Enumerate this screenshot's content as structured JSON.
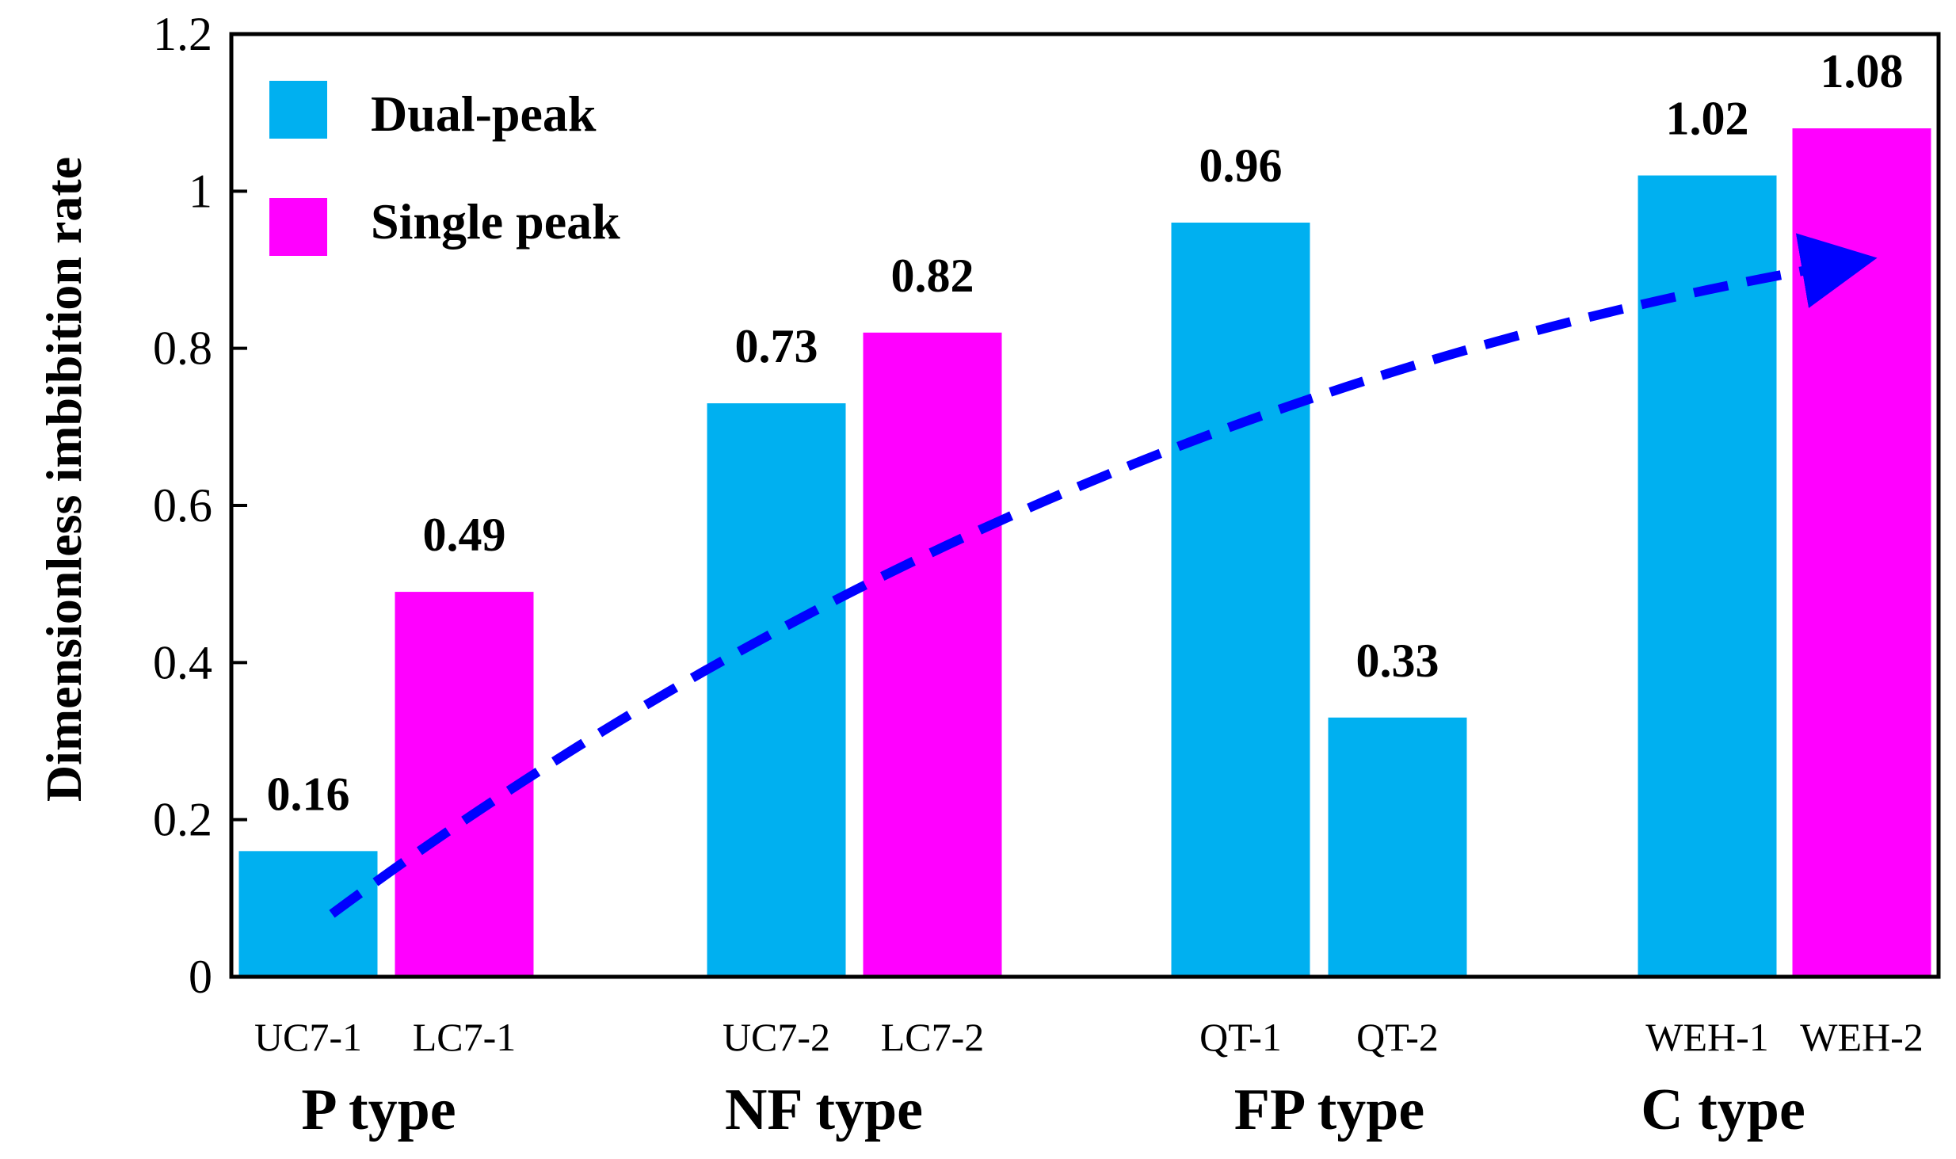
{
  "colors": {
    "dual_peak": "#00B0F0",
    "single_peak": "#FF00FF",
    "trend": "#0000FF",
    "axis": "#000000"
  },
  "chart_data": {
    "type": "bar",
    "ylabel": "Dimensionless imbibition rate",
    "ylim": [
      0,
      1.2
    ],
    "yticks": [
      0,
      0.2,
      0.4,
      0.6,
      0.8,
      1,
      1.2
    ],
    "ytick_labels": [
      "0",
      "0.2",
      "0.4",
      "0.6",
      "0.8",
      "1",
      "1.2"
    ],
    "legend": {
      "placement": "top-left",
      "entries": [
        {
          "label": "Dual-peak",
          "series": "dual_peak"
        },
        {
          "label": "Single peak",
          "series": "single_peak"
        }
      ]
    },
    "groups": [
      {
        "label": "P type",
        "bars": [
          {
            "sample": "UC7-1",
            "value": 0.16,
            "value_label": "0.16",
            "series": "dual_peak"
          },
          {
            "sample": "LC7-1",
            "value": 0.49,
            "value_label": "0.49",
            "series": "single_peak"
          }
        ]
      },
      {
        "label": "NF type",
        "bars": [
          {
            "sample": "UC7-2",
            "value": 0.73,
            "value_label": "0.73",
            "series": "dual_peak"
          },
          {
            "sample": "LC7-2",
            "value": 0.82,
            "value_label": "0.82",
            "series": "single_peak"
          }
        ]
      },
      {
        "label": "FP type",
        "bars": [
          {
            "sample": "QT-1",
            "value": 0.96,
            "value_label": "0.96",
            "series": "dual_peak"
          },
          {
            "sample": "QT-2",
            "value": 0.33,
            "value_label": "0.33",
            "series": "dual_peak"
          }
        ]
      },
      {
        "label": "C type",
        "bars": [
          {
            "sample": "WEH-1",
            "value": 1.02,
            "value_label": "1.02",
            "series": "dual_peak"
          },
          {
            "sample": "WEH-2",
            "value": 1.08,
            "value_label": "1.08",
            "series": "single_peak"
          }
        ]
      }
    ],
    "annotations": [
      {
        "type": "dashed-arrow",
        "description": "increasing trend",
        "start": {
          "bar": 0,
          "value": 0.08
        },
        "end": {
          "bar": 7,
          "value": 0.91
        }
      }
    ]
  }
}
